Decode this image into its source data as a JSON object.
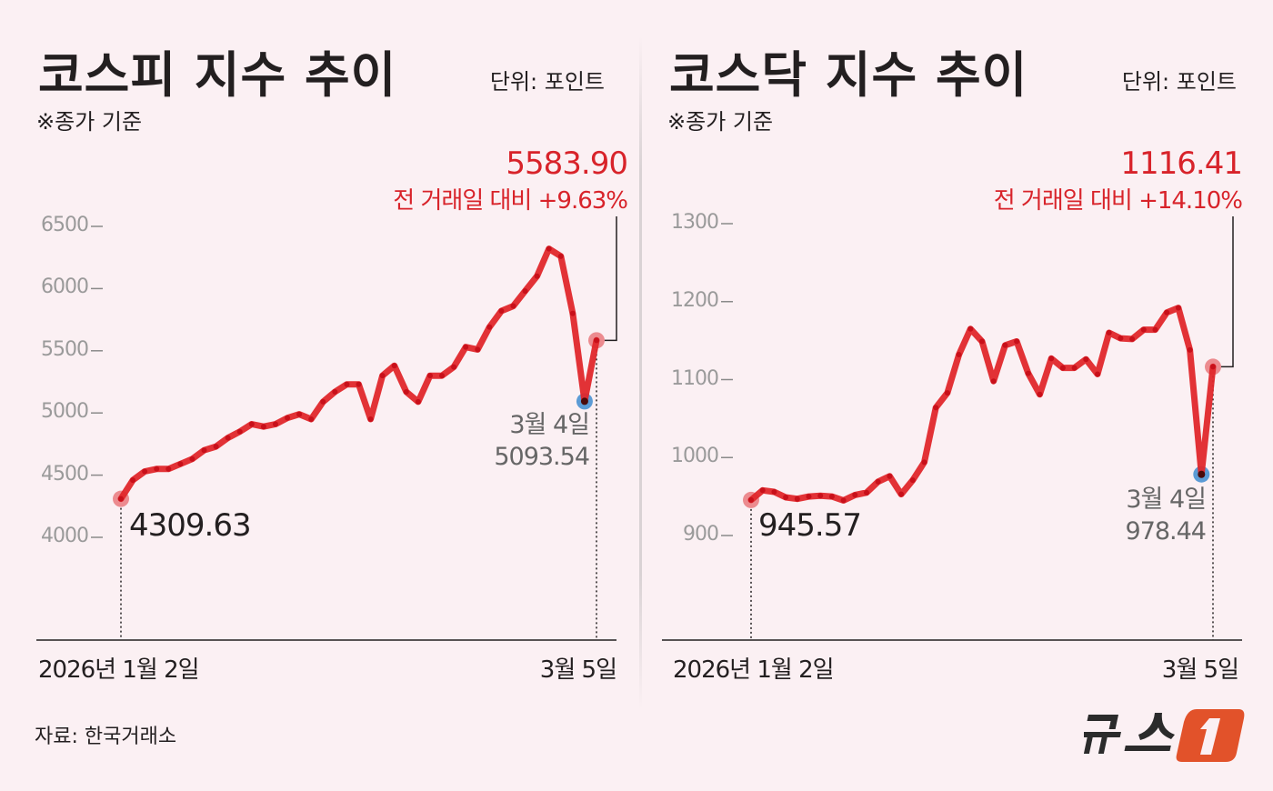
{
  "source": "자료: 한국거래소",
  "logo_text": "뉴스1",
  "colors": {
    "line": "#e0272b",
    "highlight": "#d8232a",
    "start_marker": "#ec8b8f",
    "low_marker": "#5b9bd5",
    "background": "#fbf0f3"
  },
  "chart_data": [
    {
      "type": "line",
      "title": "코스피 지수 추이",
      "unit": "단위: 포인트",
      "note": "※종가 기준",
      "x_labels": {
        "start": "2026년 1월 2일",
        "end": "3월 5일"
      },
      "ylim": [
        4000,
        6500
      ],
      "y_ticks": [
        "6500",
        "6000",
        "5500",
        "5000",
        "4500",
        "4000"
      ],
      "grid": false,
      "values": [
        4309.63,
        4460,
        4530,
        4550,
        4550,
        4590,
        4630,
        4700,
        4730,
        4800,
        4850,
        4910,
        4890,
        4910,
        4960,
        4990,
        4950,
        5090,
        5170,
        5230,
        5230,
        4950,
        5300,
        5380,
        5170,
        5090,
        5300,
        5300,
        5370,
        5530,
        5510,
        5690,
        5820,
        5860,
        5980,
        6100,
        6320,
        6260,
        5800,
        5093.54,
        5583.9
      ],
      "start_label": "4309.63",
      "low": {
        "date": "3월 4일",
        "value": "5093.54"
      },
      "last": {
        "value": "5583.90",
        "change": "전 거래일 대비 +9.63%"
      }
    },
    {
      "type": "line",
      "title": "코스닥 지수 추이",
      "unit": "단위: 포인트",
      "note": "※종가 기준",
      "x_labels": {
        "start": "2026년 1월 2일",
        "end": "3월 5일"
      },
      "ylim": [
        900,
        1300
      ],
      "y_ticks": [
        "1300",
        "1200",
        "1100",
        "1000",
        "900"
      ],
      "grid": false,
      "values": [
        945.57,
        958,
        956,
        949,
        947,
        950,
        951,
        950,
        945,
        952,
        955,
        969,
        976,
        953,
        971,
        994,
        1064,
        1083,
        1132,
        1165,
        1149,
        1098,
        1144,
        1149,
        1108,
        1081,
        1127,
        1115,
        1115,
        1126,
        1107,
        1160,
        1153,
        1152,
        1164,
        1164,
        1186,
        1192,
        1138,
        978.44,
        1116.41
      ],
      "start_label": "945.57",
      "low": {
        "date": "3월 4일",
        "value": "978.44"
      },
      "last": {
        "value": "1116.41",
        "change": "전 거래일 대비 +14.10%"
      }
    }
  ]
}
